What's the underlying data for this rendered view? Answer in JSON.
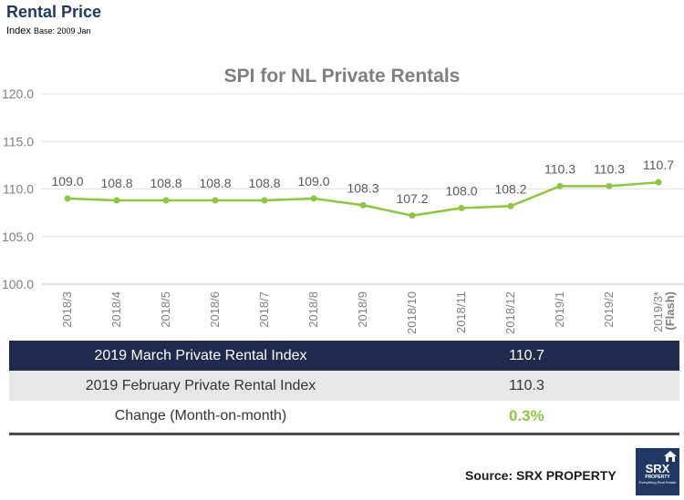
{
  "header": {
    "title": "Rental Price",
    "subtitle_main": "Index",
    "subtitle_small": "Base: 2009 Jan"
  },
  "chart_data": {
    "type": "line",
    "title": "SPI for NL Private Rentals",
    "categories": [
      "2018/3",
      "2018/4",
      "2018/5",
      "2018/6",
      "2018/7",
      "2018/8",
      "2018/9",
      "2018/10",
      "2018/11",
      "2018/12",
      "2019/1",
      "2019/2",
      "2019/3*\n(Flash)"
    ],
    "series": [
      {
        "values": [
          109.0,
          108.8,
          108.8,
          108.8,
          108.8,
          109.0,
          108.3,
          107.2,
          108.0,
          108.2,
          110.3,
          110.3,
          110.7
        ],
        "color": "#8dc63f"
      }
    ],
    "data_labels": [
      "109.0",
      "108.8",
      "108.8",
      "108.8",
      "108.8",
      "109.0",
      "108.3",
      "107.2",
      "108.0",
      "108.2",
      "110.3",
      "110.3",
      "110.7"
    ],
    "ylim": [
      100,
      120
    ],
    "yticks": [
      100,
      105,
      110,
      115,
      120
    ],
    "ytick_labels": [
      "100.0",
      "105.0",
      "110.0",
      "115.0",
      "120.0"
    ],
    "grid": true,
    "xlabel": "",
    "ylabel": ""
  },
  "summary_table": {
    "rows": [
      {
        "label": "2019 March Private Rental Index",
        "value": "110.7"
      },
      {
        "label": "2019 February Private Rental Index",
        "value": "110.3"
      },
      {
        "label": "Change (Month-on-month)",
        "value": "0.3%"
      }
    ]
  },
  "footer": {
    "source": "Source:  SRX PROPERTY",
    "logo_main": "SRX",
    "logo_sub": "PROPERTY",
    "logo_tag": "Everything Real Estate"
  }
}
